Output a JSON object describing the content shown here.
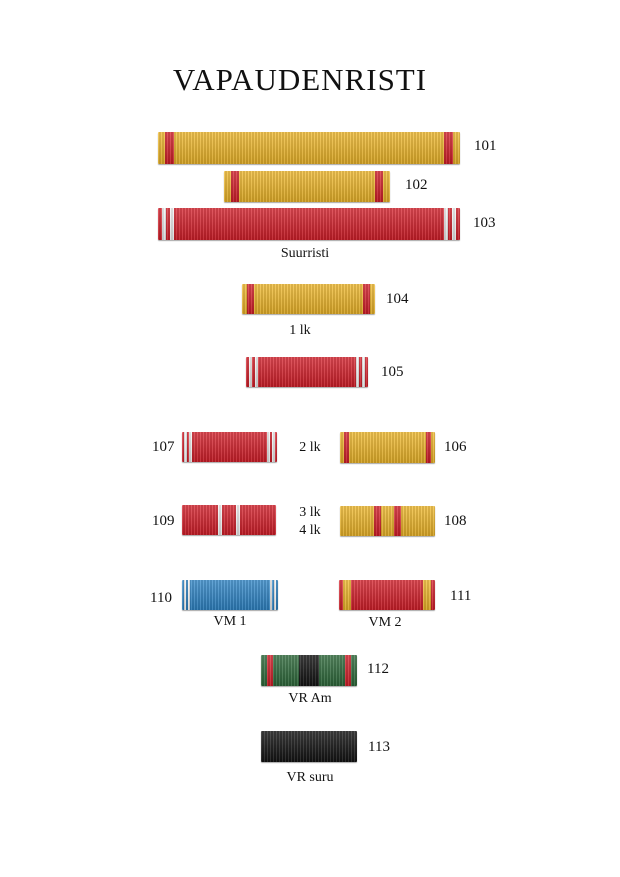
{
  "page": {
    "title": "VAPAUDENRISTI"
  },
  "colors": {
    "gold": "#f0b82a",
    "red": "#d61f2a",
    "white": "#f4f4f4",
    "blue": "#2f86c8",
    "green": "#2f6b3c",
    "black": "#131313"
  },
  "ribbons": [
    {
      "code": "101",
      "pattern": "gold-red-edges"
    },
    {
      "code": "102",
      "pattern": "gold-red-edges"
    },
    {
      "code": "103",
      "pattern": "red-white-edge-stripes"
    },
    {
      "code": "104",
      "pattern": "gold-red-edges"
    },
    {
      "code": "105",
      "pattern": "red-white-edge-stripes"
    },
    {
      "code": "106",
      "pattern": "gold-red-edges"
    },
    {
      "code": "107",
      "pattern": "red-white-edge-stripes"
    },
    {
      "code": "108",
      "pattern": "gold-two-red-stripes"
    },
    {
      "code": "109",
      "pattern": "red-two-white-stripes"
    },
    {
      "code": "110",
      "pattern": "blue-white-edge-stripes"
    },
    {
      "code": "111",
      "pattern": "red-gold-edges"
    },
    {
      "code": "112",
      "pattern": "green-red-black"
    },
    {
      "code": "113",
      "pattern": "black"
    }
  ],
  "labels": {
    "suurristi": "Suurristi",
    "lk1": "1 lk",
    "lk2": "2 lk",
    "lk3": "3 lk",
    "lk4": "4 lk",
    "vm1": "VM 1",
    "vm2": "VM 2",
    "vr_am": "VR Am",
    "vr_suru": "VR suru"
  }
}
